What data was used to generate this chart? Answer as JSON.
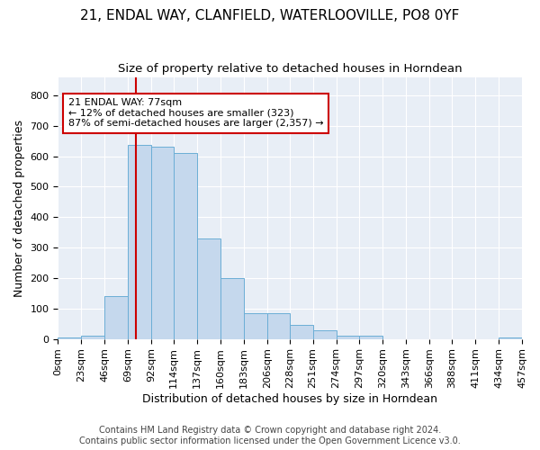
{
  "title_line1": "21, ENDAL WAY, CLANFIELD, WATERLOOVILLE, PO8 0YF",
  "title_line2": "Size of property relative to detached houses in Horndean",
  "xlabel": "Distribution of detached houses by size in Horndean",
  "ylabel": "Number of detached properties",
  "footnote1": "Contains HM Land Registry data © Crown copyright and database right 2024.",
  "footnote2": "Contains public sector information licensed under the Open Government Licence v3.0.",
  "annotation_line1": "21 ENDAL WAY: 77sqm",
  "annotation_line2": "← 12% of detached houses are smaller (323)",
  "annotation_line3": "87% of semi-detached houses are larger (2,357) →",
  "bar_color": "#c5d8ed",
  "bar_edge_color": "#6baed6",
  "vline_color": "#cc0000",
  "background_color": "#e8eef6",
  "bin_edges": [
    0,
    23,
    46,
    69,
    92,
    114,
    137,
    160,
    183,
    206,
    228,
    251,
    274,
    297,
    320,
    343,
    366,
    388,
    411,
    434,
    457
  ],
  "bin_values": [
    5,
    10,
    140,
    638,
    632,
    610,
    330,
    200,
    85,
    85,
    45,
    27,
    12,
    12,
    0,
    0,
    0,
    0,
    0,
    5
  ],
  "vline_x": 77,
  "ylim": [
    0,
    860
  ],
  "xlim": [
    0,
    457
  ],
  "yticks": [
    0,
    100,
    200,
    300,
    400,
    500,
    600,
    700,
    800
  ],
  "xtick_labels": [
    "0sqm",
    "23sqm",
    "46sqm",
    "69sqm",
    "92sqm",
    "114sqm",
    "137sqm",
    "160sqm",
    "183sqm",
    "206sqm",
    "228sqm",
    "251sqm",
    "274sqm",
    "297sqm",
    "320sqm",
    "343sqm",
    "366sqm",
    "388sqm",
    "411sqm",
    "434sqm",
    "457sqm"
  ],
  "title_fontsize": 11,
  "subtitle_fontsize": 9.5,
  "axis_label_fontsize": 9,
  "tick_fontsize": 8,
  "footnote_fontsize": 7
}
